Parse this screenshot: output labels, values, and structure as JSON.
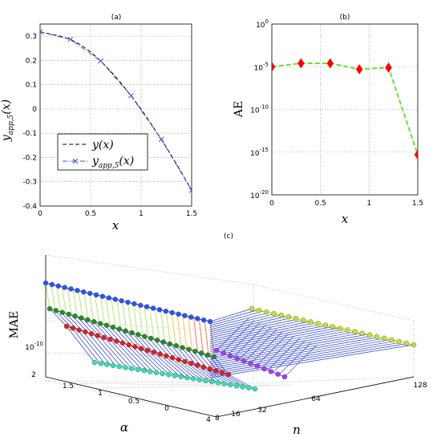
{
  "chart_data": [
    {
      "panel": "(a)",
      "type": "line",
      "title": "(a)",
      "xlabel": "x",
      "ylabel": "y_app,5(x)",
      "xlim": [
        0,
        1.5
      ],
      "ylim": [
        -0.4,
        0.35
      ],
      "xticks": [
        "0",
        "0.5",
        "1",
        "1.5"
      ],
      "yticks": [
        "0.3",
        "0.2",
        "0.1",
        "0",
        "-0.1",
        "-0.2",
        "-0.3",
        "-0.4"
      ],
      "grid": true,
      "legend_position": "lower-left",
      "series": [
        {
          "name": "y(x)",
          "color": "#000000",
          "style": "dashed",
          "x": [
            0,
            0.1,
            0.2,
            0.3,
            0.4,
            0.5,
            0.6,
            0.7,
            0.8,
            0.9,
            1.0,
            1.1,
            1.2,
            1.3,
            1.4,
            1.5
          ],
          "y": [
            0.318,
            0.309,
            0.3,
            0.287,
            0.265,
            0.235,
            0.198,
            0.155,
            0.107,
            0.055,
            -0.001,
            -0.062,
            -0.125,
            -0.192,
            -0.262,
            -0.335
          ]
        },
        {
          "name": "y_app,5(x)",
          "color": "#3a4fd0",
          "style": "dashdot",
          "marker": "x",
          "x": [
            0,
            0.3,
            0.6,
            0.9,
            1.2,
            1.5
          ],
          "y": [
            0.318,
            0.287,
            0.198,
            0.055,
            -0.125,
            -0.335
          ]
        }
      ]
    },
    {
      "panel": "(b)",
      "type": "line",
      "title": "(b)",
      "xlabel": "x",
      "ylabel": "AE",
      "yscale": "log",
      "xlim": [
        0,
        1.5
      ],
      "ylim": [
        "1e-20",
        "1e0"
      ],
      "xticks": [
        "0",
        "0.5",
        "1",
        "1.5"
      ],
      "yticks": [
        "10^0",
        "10^-5",
        "10^-10",
        "10^-15",
        "10^-20"
      ],
      "grid": true,
      "series": [
        {
          "color": "#66e23c",
          "marker_color": "#ff0000",
          "marker": "diamond",
          "style": "dashed",
          "x": [
            0,
            0.3,
            0.6,
            0.9,
            1.2,
            1.5
          ],
          "y_log10": [
            -5.0,
            -4.6,
            -4.6,
            -5.3,
            -5.1,
            -15.3
          ]
        }
      ]
    },
    {
      "panel": "(c)",
      "type": "line3d",
      "title": "(c)",
      "xlabel": "alpha",
      "ylabel": "n",
      "zlabel": "MAE",
      "alpha_ticks": [
        "2",
        "1.5",
        "1",
        "0.5",
        "0"
      ],
      "n_ticks": [
        "4",
        "8",
        "16",
        "32",
        "64",
        "128"
      ],
      "z_tick": "10^-10",
      "series": [
        {
          "color": "#2b55f0",
          "front": [
            [
              57,
              353
            ],
            [
              262,
              401
            ]
          ],
          "back": [
            [
              262,
              401
            ],
            [
              350,
              420
            ]
          ]
        },
        {
          "color": "#2a8a2a",
          "front": [
            [
              62,
              385
            ],
            [
              267,
              445
            ]
          ],
          "back": [
            [
              267,
              445
            ],
            [
              350,
              420
            ]
          ]
        },
        {
          "color": "#e02020",
          "front": [
            [
              83,
              407
            ],
            [
              285,
              467
            ]
          ],
          "back": [
            [
              285,
              467
            ],
            [
              300,
              440
            ]
          ]
        },
        {
          "color": "#35e0b0",
          "front": [
            [
              118,
              452
            ],
            [
              318,
              485
            ]
          ],
          "back": [
            [
              318,
              485
            ],
            [
              355,
              465
            ]
          ]
        },
        {
          "color": "#a040e8",
          "front": [
            [
              270,
              437
            ],
            [
              355,
              470
            ]
          ],
          "back": []
        },
        {
          "color": "#c8e030",
          "front": [
            [
              314,
              385
            ],
            [
              516,
              430
            ]
          ],
          "back": []
        }
      ]
    }
  ]
}
